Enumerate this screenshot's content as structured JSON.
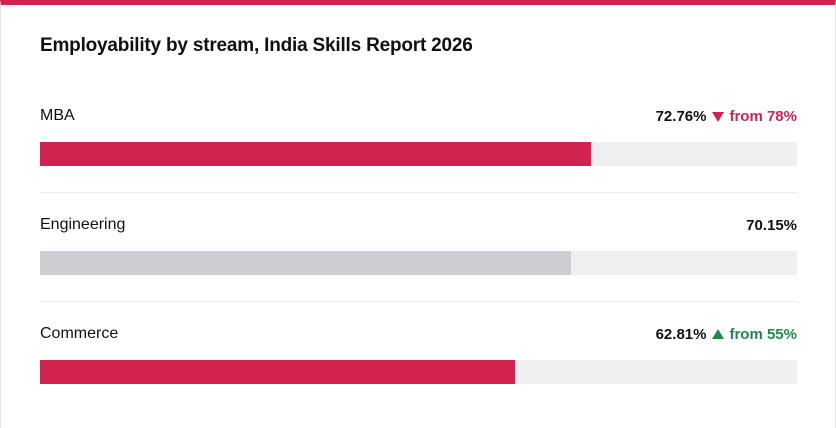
{
  "chart_data": {
    "type": "bar",
    "orientation": "horizontal",
    "title": "Employability by stream, India Skills Report 2026",
    "categories": [
      "MBA",
      "Engineering",
      "Commerce"
    ],
    "values": [
      72.76,
      70.15,
      62.81
    ],
    "value_labels": [
      "72.76%",
      "70.15%",
      "62.81%"
    ],
    "previous_values": [
      78,
      null,
      55
    ],
    "previous_value_labels": [
      "from 78%",
      null,
      "from 55%"
    ],
    "colors": [
      "#d2234e",
      "#cfcdd3",
      "#d2234e"
    ],
    "track_color": "#efeef0",
    "down_color": "#d2234e",
    "up_color": "#1f8a4c",
    "xlim": [
      0,
      100
    ]
  }
}
